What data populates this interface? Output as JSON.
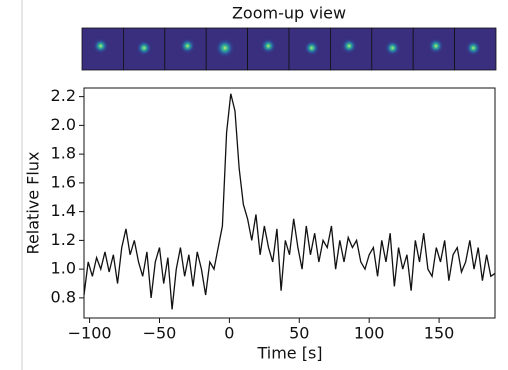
{
  "chart_data": {
    "type": "line",
    "title": "Zoom-up view",
    "xlabel": "Time [s]",
    "ylabel": "Relative Flux",
    "color": "#111111",
    "x": [
      -104,
      -101,
      -98,
      -95,
      -92,
      -89,
      -86,
      -83,
      -80,
      -77,
      -74,
      -71,
      -68,
      -65,
      -62,
      -59,
      -56,
      -53,
      -50,
      -47,
      -44,
      -41,
      -38,
      -35,
      -32,
      -29,
      -26,
      -23,
      -20,
      -17,
      -14,
      -11,
      -8,
      -5,
      -2,
      1,
      4,
      7,
      10,
      13,
      16,
      19,
      22,
      25,
      28,
      31,
      34,
      37,
      40,
      43,
      46,
      49,
      52,
      55,
      58,
      61,
      64,
      67,
      70,
      73,
      76,
      79,
      82,
      85,
      88,
      91,
      94,
      97,
      100,
      103,
      106,
      109,
      112,
      115,
      118,
      121,
      124,
      127,
      130,
      133,
      136,
      139,
      142,
      145,
      148,
      151,
      154,
      157,
      160,
      163,
      166,
      169,
      172,
      175,
      178,
      181,
      184,
      187,
      190
    ],
    "values": [
      0.82,
      1.05,
      0.95,
      1.08,
      1.0,
      1.12,
      0.98,
      1.1,
      0.9,
      1.15,
      1.28,
      1.1,
      1.2,
      1.05,
      0.95,
      1.12,
      0.8,
      1.05,
      1.15,
      0.9,
      1.08,
      0.72,
      1.0,
      1.15,
      0.95,
      1.1,
      0.88,
      1.12,
      1.0,
      0.82,
      1.05,
      1.0,
      1.15,
      1.3,
      1.95,
      2.22,
      2.1,
      1.7,
      1.45,
      1.35,
      1.2,
      1.38,
      1.1,
      1.3,
      1.15,
      1.05,
      1.28,
      0.85,
      1.2,
      1.1,
      1.35,
      1.15,
      1.0,
      1.3,
      1.1,
      1.25,
      1.05,
      1.2,
      1.15,
      1.3,
      1.0,
      1.2,
      1.05,
      1.22,
      1.15,
      1.2,
      1.05,
      1.0,
      1.1,
      1.15,
      0.95,
      1.2,
      1.05,
      1.25,
      0.88,
      1.15,
      1.0,
      1.1,
      0.85,
      1.2,
      1.05,
      1.25,
      1.0,
      0.95,
      1.15,
      1.05,
      1.2,
      0.92,
      1.1,
      1.15,
      0.98,
      1.05,
      1.2,
      1.0,
      1.15,
      0.92,
      1.1,
      0.95,
      0.97
    ],
    "xlim": [
      -104,
      190
    ],
    "ylim": [
      0.66,
      2.26
    ],
    "xticks": [
      {
        "value": -100,
        "label": "−100"
      },
      {
        "value": -50,
        "label": "−50"
      },
      0,
      50,
      100,
      150
    ],
    "yticks": [
      0.8,
      {
        "value": 1.0,
        "label": "1.0"
      },
      1.2,
      1.4,
      1.6,
      1.8,
      {
        "value": 2.0,
        "label": "2.0"
      },
      2.2
    ]
  }
}
